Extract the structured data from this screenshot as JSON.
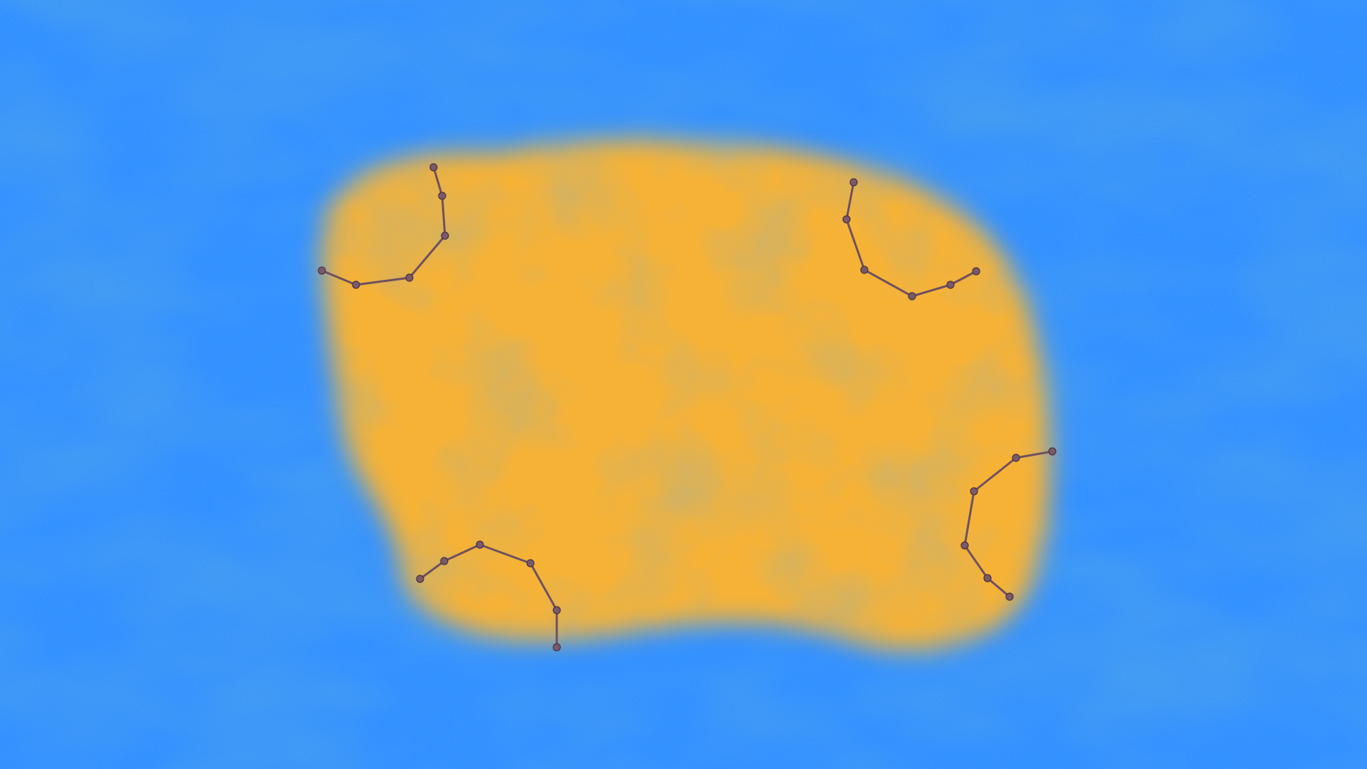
{
  "scene": {
    "water_color_light": "#2a8cff",
    "water_color_dark": "#0b50d8",
    "sand_color_light": "#ffb430",
    "sand_color_dark": "#b88a2c",
    "path_color": "#6e5060",
    "node_color": "#7a5a6a"
  },
  "paths": [
    {
      "name": "top-left"
    },
    {
      "name": "top-right"
    },
    {
      "name": "bottom-left"
    },
    {
      "name": "bottom-right"
    }
  ]
}
